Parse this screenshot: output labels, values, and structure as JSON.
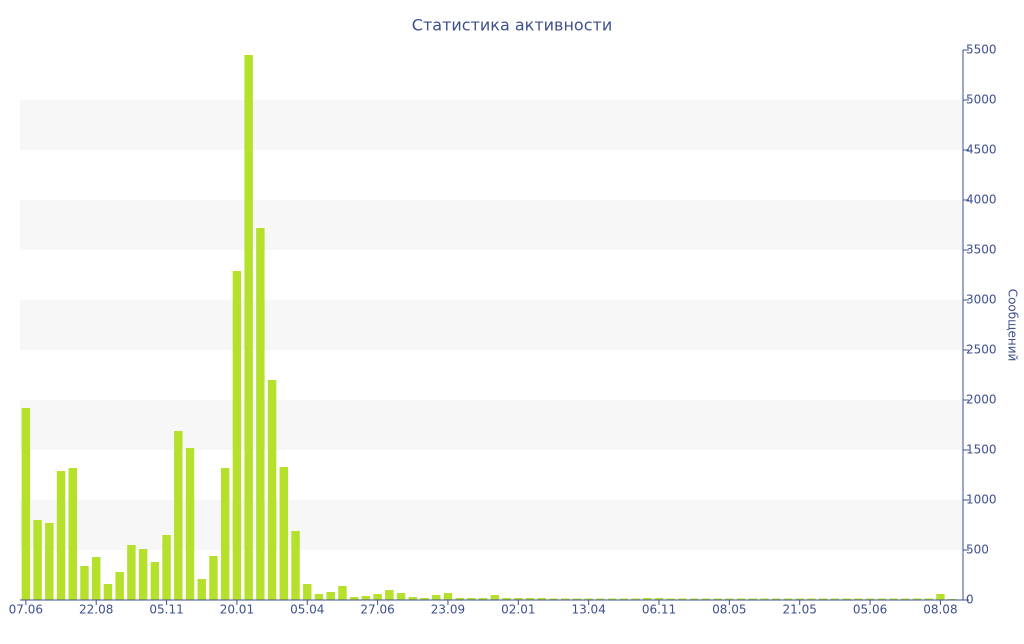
{
  "chart_data": {
    "type": "bar",
    "title": "Статистика активности",
    "y_label": "Сообщений",
    "categories": [
      "07.06",
      null,
      null,
      null,
      null,
      null,
      "22.08",
      null,
      null,
      null,
      null,
      null,
      "05.11",
      null,
      null,
      null,
      null,
      null,
      "20.01",
      null,
      null,
      null,
      null,
      null,
      "05.04",
      null,
      null,
      null,
      null,
      null,
      "27.06",
      null,
      null,
      null,
      null,
      null,
      "23.09",
      null,
      null,
      null,
      null,
      null,
      "02.01",
      null,
      null,
      null,
      null,
      null,
      "13.04",
      null,
      null,
      null,
      null,
      null,
      "06.11",
      null,
      null,
      null,
      null,
      null,
      "08.05",
      null,
      null,
      null,
      null,
      null,
      "21.05",
      null,
      null,
      null,
      null,
      null,
      "05.06",
      null,
      null,
      null,
      null,
      null,
      "08.08",
      null
    ],
    "values": [
      1920,
      800,
      770,
      1290,
      1320,
      340,
      430,
      160,
      280,
      550,
      510,
      380,
      650,
      1690,
      1520,
      210,
      440,
      1320,
      3290,
      5450,
      3720,
      2200,
      1330,
      690,
      160,
      60,
      80,
      140,
      30,
      40,
      60,
      100,
      70,
      30,
      20,
      50,
      70,
      20,
      20,
      20,
      50,
      20,
      20,
      20,
      20,
      15,
      15,
      15,
      15,
      15,
      15,
      15,
      15,
      20,
      20,
      15,
      15,
      15,
      15,
      15,
      15,
      15,
      15,
      15,
      15,
      15,
      15,
      15,
      15,
      15,
      15,
      15,
      15,
      15,
      15,
      15,
      15,
      15,
      60,
      10
    ],
    "color": "#b5e02c",
    "ylim": [
      0,
      5500
    ],
    "yticks": [
      0,
      500,
      1000,
      1500,
      2000,
      2500,
      3000,
      3500,
      4000,
      4500,
      5000,
      5500
    ],
    "alternate_bands": true
  }
}
